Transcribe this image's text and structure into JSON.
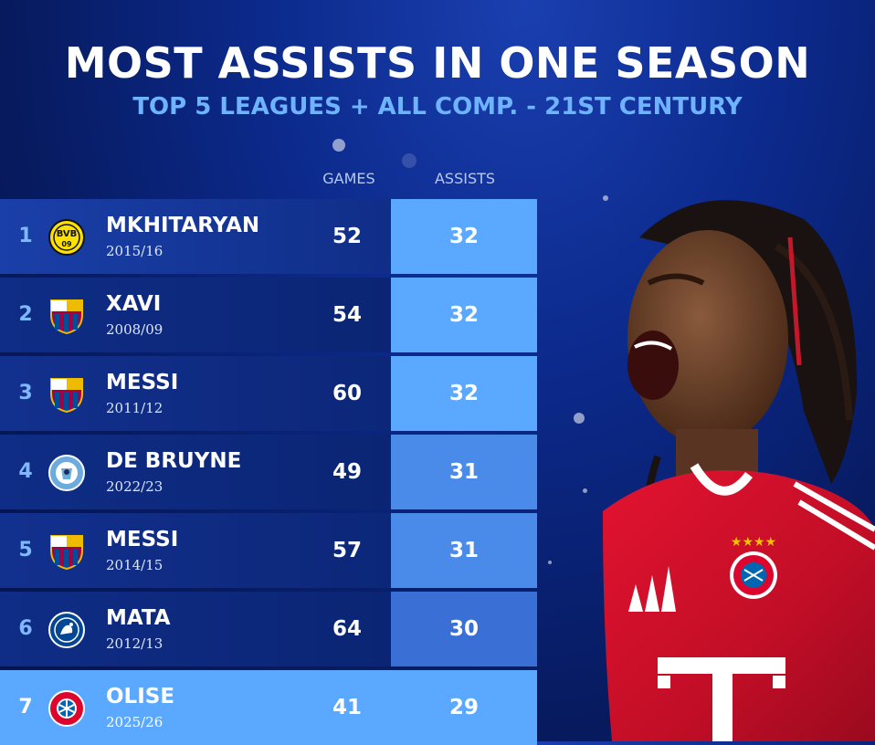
{
  "header": {
    "title": "MOST ASSISTS IN ONE SEASON",
    "subtitle": "TOP 5 LEAGUES + ALL COMP. - 21ST CENTURY"
  },
  "columns": {
    "games": "GAMES",
    "assists": "ASSISTS"
  },
  "rows": [
    {
      "rank": "1",
      "name": "MKHITARYAN",
      "season": "2015/16",
      "games": "52",
      "assists": "32",
      "club_icon": "bvb-crest-icon"
    },
    {
      "rank": "2",
      "name": "XAVI",
      "season": "2008/09",
      "games": "54",
      "assists": "32",
      "club_icon": "barcelona-crest-icon"
    },
    {
      "rank": "3",
      "name": "MESSI",
      "season": "2011/12",
      "games": "60",
      "assists": "32",
      "club_icon": "barcelona-crest-icon"
    },
    {
      "rank": "4",
      "name": "DE BRUYNE",
      "season": "2022/23",
      "games": "49",
      "assists": "31",
      "club_icon": "man-city-crest-icon"
    },
    {
      "rank": "5",
      "name": "MESSI",
      "season": "2014/15",
      "games": "57",
      "assists": "31",
      "club_icon": "barcelona-crest-icon"
    },
    {
      "rank": "6",
      "name": "MATA",
      "season": "2012/13",
      "games": "64",
      "assists": "30",
      "club_icon": "chelsea-crest-icon"
    },
    {
      "rank": "7",
      "name": "OLISE",
      "season": "2025/26",
      "games": "41",
      "assists": "29",
      "club_icon": "bayern-crest-icon"
    }
  ],
  "colors": {
    "title": "#ffffff",
    "subtitle": "#6fb3ff",
    "assists_fill_top": "#5aa8ff",
    "assists_fill_low": "#3a6fd6",
    "highlight_row": "#5aa8ff"
  }
}
